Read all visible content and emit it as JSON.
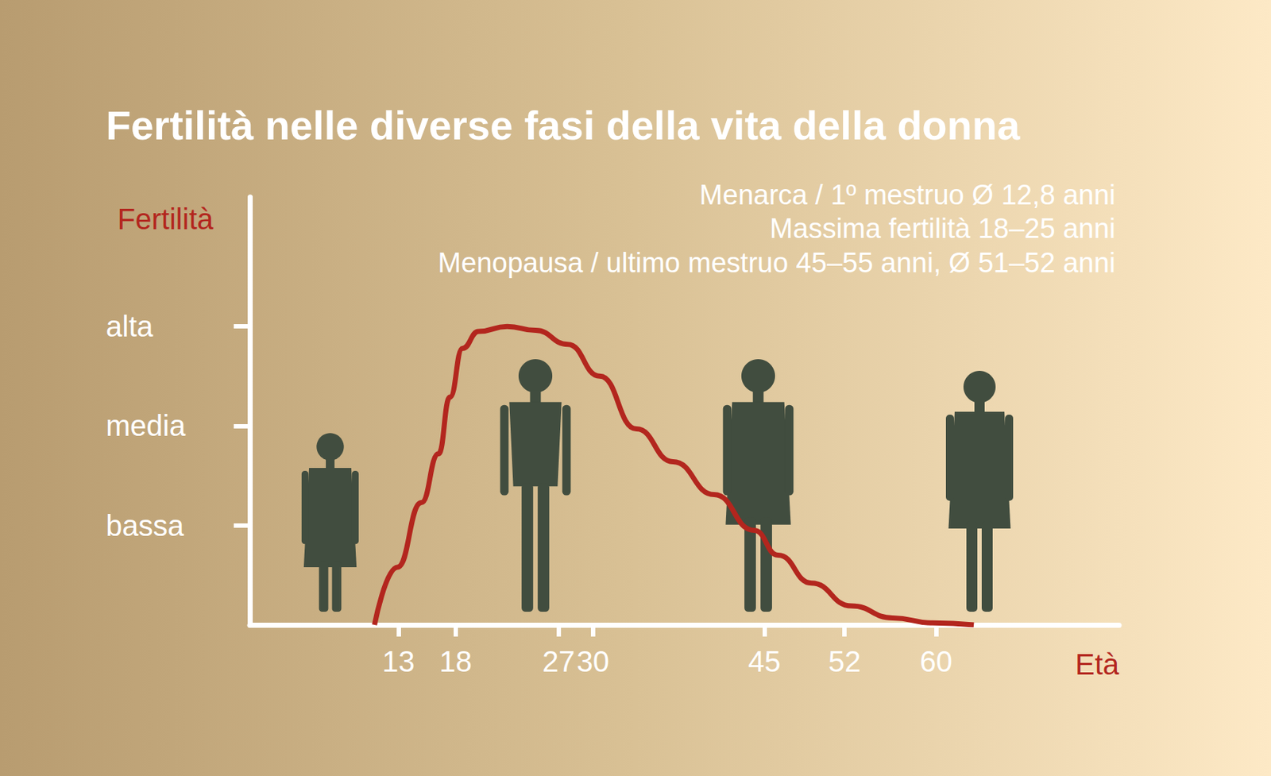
{
  "chart_data": {
    "type": "line",
    "title": "Fertilità nelle diverse fasi della vita della donna",
    "annotations": [
      "Menarca / 1º mestruo Ø 12,8 anni",
      "Massima fertilità 18–25 anni",
      "Menopausa / ultimo mestruo 45–55 anni, Ø 51–52 anni"
    ],
    "x_label": "Età",
    "y_label": "Fertilità",
    "x": [
      10.9,
      12.9,
      15.0,
      16.5,
      17.5,
      18.6,
      20.0,
      22.5,
      25.0,
      27.8,
      30.6,
      33.8,
      37.0,
      40.6,
      44.1,
      46.2,
      49.1,
      52.6,
      56.2,
      59.7,
      63.3
    ],
    "values": [
      0,
      0.58,
      1.23,
      1.72,
      2.29,
      2.78,
      2.95,
      3.0,
      2.96,
      2.82,
      2.5,
      1.97,
      1.64,
      1.31,
      0.95,
      0.7,
      0.42,
      0.19,
      0.07,
      0.02,
      0
    ],
    "color": "#b3261e",
    "xlim": [
      0,
      76
    ],
    "xticks": [
      13,
      18,
      27,
      30,
      45,
      52,
      60
    ],
    "ylim": [
      0,
      4.3
    ],
    "yticks": [
      {
        "value": 1,
        "label": "bassa"
      },
      {
        "value": 2,
        "label": "media"
      },
      {
        "value": 3,
        "label": "alta"
      }
    ],
    "grid": false
  }
}
